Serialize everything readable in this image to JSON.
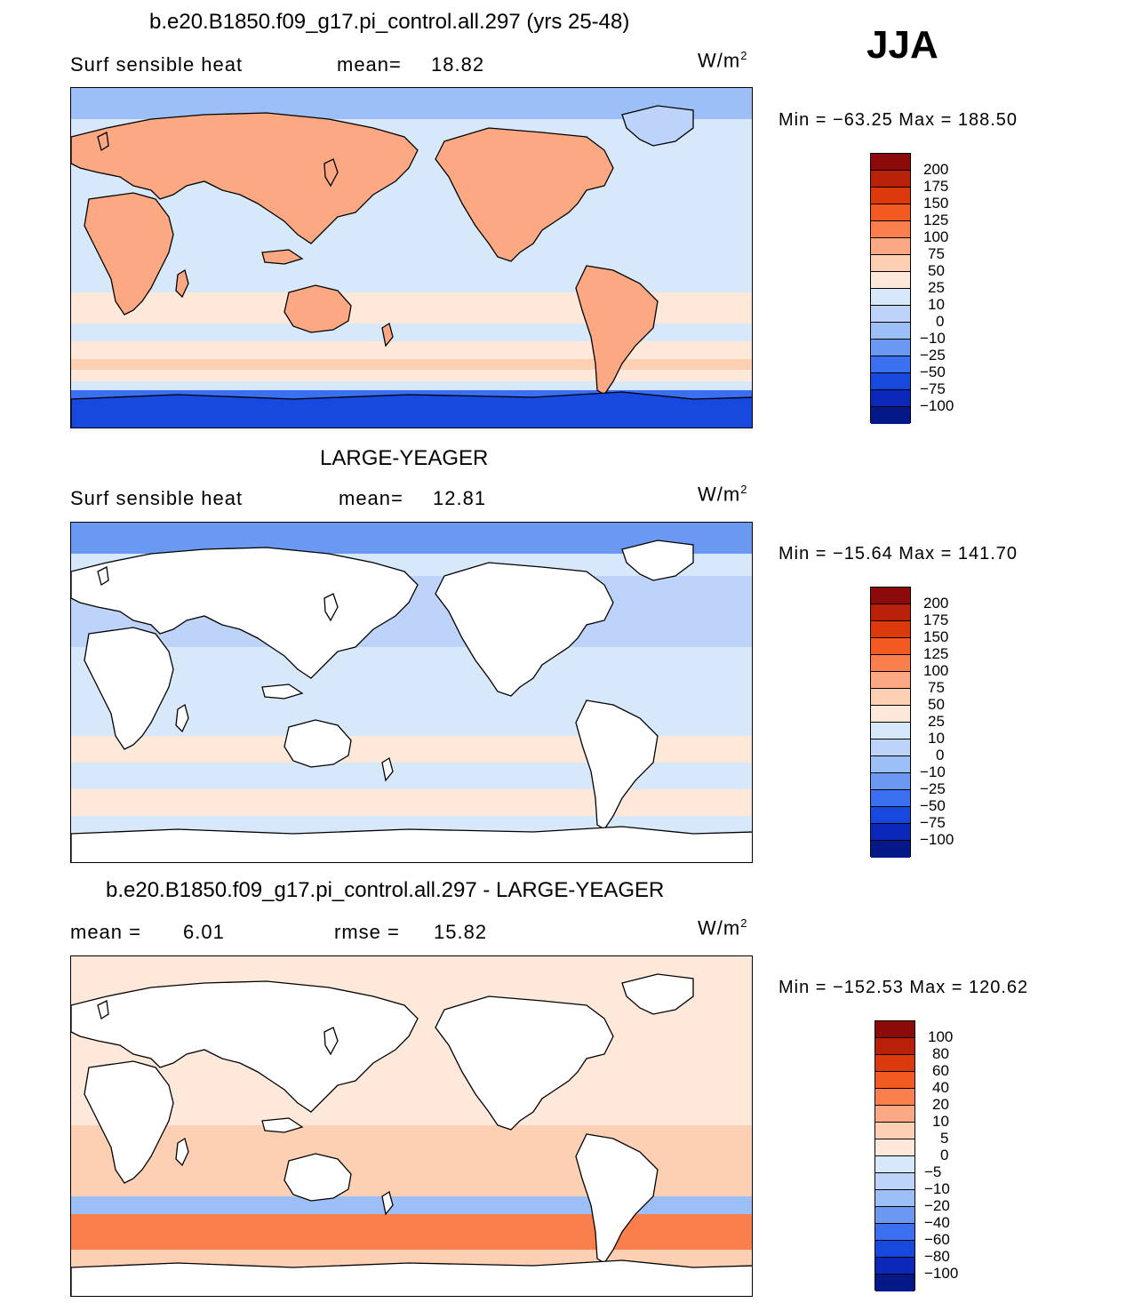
{
  "season": "JJA",
  "panels": [
    {
      "title": "b.e20.B1850.f09_g17.pi_control.all.297 (yrs 25-48)",
      "subtitle_left": "Surf  sensible  heat",
      "stat1_label": "mean=",
      "stat1_value": "18.82",
      "stat2_label": "",
      "stat2_value": "",
      "units_main": "W/m",
      "units_exp": "2",
      "minmax": "Min  =  −63.25  Max  =  188.50",
      "land_style": "filled",
      "colorbar": {
        "labels": [
          "200",
          "175",
          "150",
          "125",
          "100",
          "75",
          "50",
          "25",
          "10",
          "0",
          "−10",
          "−25",
          "−50",
          "−75",
          "−100"
        ],
        "colors": [
          "#8c0a0a",
          "#b82008",
          "#dc3a0c",
          "#f25a22",
          "#fb7f4c",
          "#fca882",
          "#fdd0b4",
          "#fde8da",
          "#d8e8fb",
          "#bdd3f9",
          "#9dbff7",
          "#6b99f2",
          "#3a6ff0",
          "#1849df",
          "#0c28b8",
          "#051888"
        ]
      }
    },
    {
      "title": "LARGE-YEAGER",
      "subtitle_left": "Surf  sensible  heat",
      "stat1_label": "mean=",
      "stat1_value": "12.81",
      "stat2_label": "",
      "stat2_value": "",
      "units_main": "W/m",
      "units_exp": "2",
      "minmax": "Min  =  −15.64  Max  =  141.70",
      "land_style": "blank",
      "colorbar": {
        "labels": [
          "200",
          "175",
          "150",
          "125",
          "100",
          "75",
          "50",
          "25",
          "10",
          "0",
          "−10",
          "−25",
          "−50",
          "−75",
          "−100"
        ],
        "colors": [
          "#8c0a0a",
          "#b82008",
          "#dc3a0c",
          "#f25a22",
          "#fb7f4c",
          "#fca882",
          "#fdd0b4",
          "#fde8da",
          "#d8e8fb",
          "#bdd3f9",
          "#9dbff7",
          "#6b99f2",
          "#3a6ff0",
          "#1849df",
          "#0c28b8",
          "#051888"
        ]
      }
    },
    {
      "title": "b.e20.B1850.f09_g17.pi_control.all.297 - LARGE-YEAGER",
      "subtitle_left": "mean  =",
      "stat1_label": "",
      "stat1_value": "6.01",
      "stat2_label": "rmse  =",
      "stat2_value": "15.82",
      "units_main": "W/m",
      "units_exp": "2",
      "minmax": "Min  =  −152.53  Max  =  120.62",
      "land_style": "blank",
      "colorbar": {
        "labels": [
          "100",
          "80",
          "60",
          "40",
          "20",
          "10",
          "5",
          "0",
          "−5",
          "−10",
          "−20",
          "−40",
          "−60",
          "−80",
          "−100"
        ],
        "colors": [
          "#8c0a0a",
          "#b82008",
          "#dc3a0c",
          "#f25a22",
          "#fb7f4c",
          "#fca882",
          "#fdd0b4",
          "#fde8da",
          "#d8e8fb",
          "#bdd3f9",
          "#9dbff7",
          "#6b99f2",
          "#3a6ff0",
          "#1849df",
          "#0c28b8",
          "#051888"
        ]
      }
    }
  ]
}
